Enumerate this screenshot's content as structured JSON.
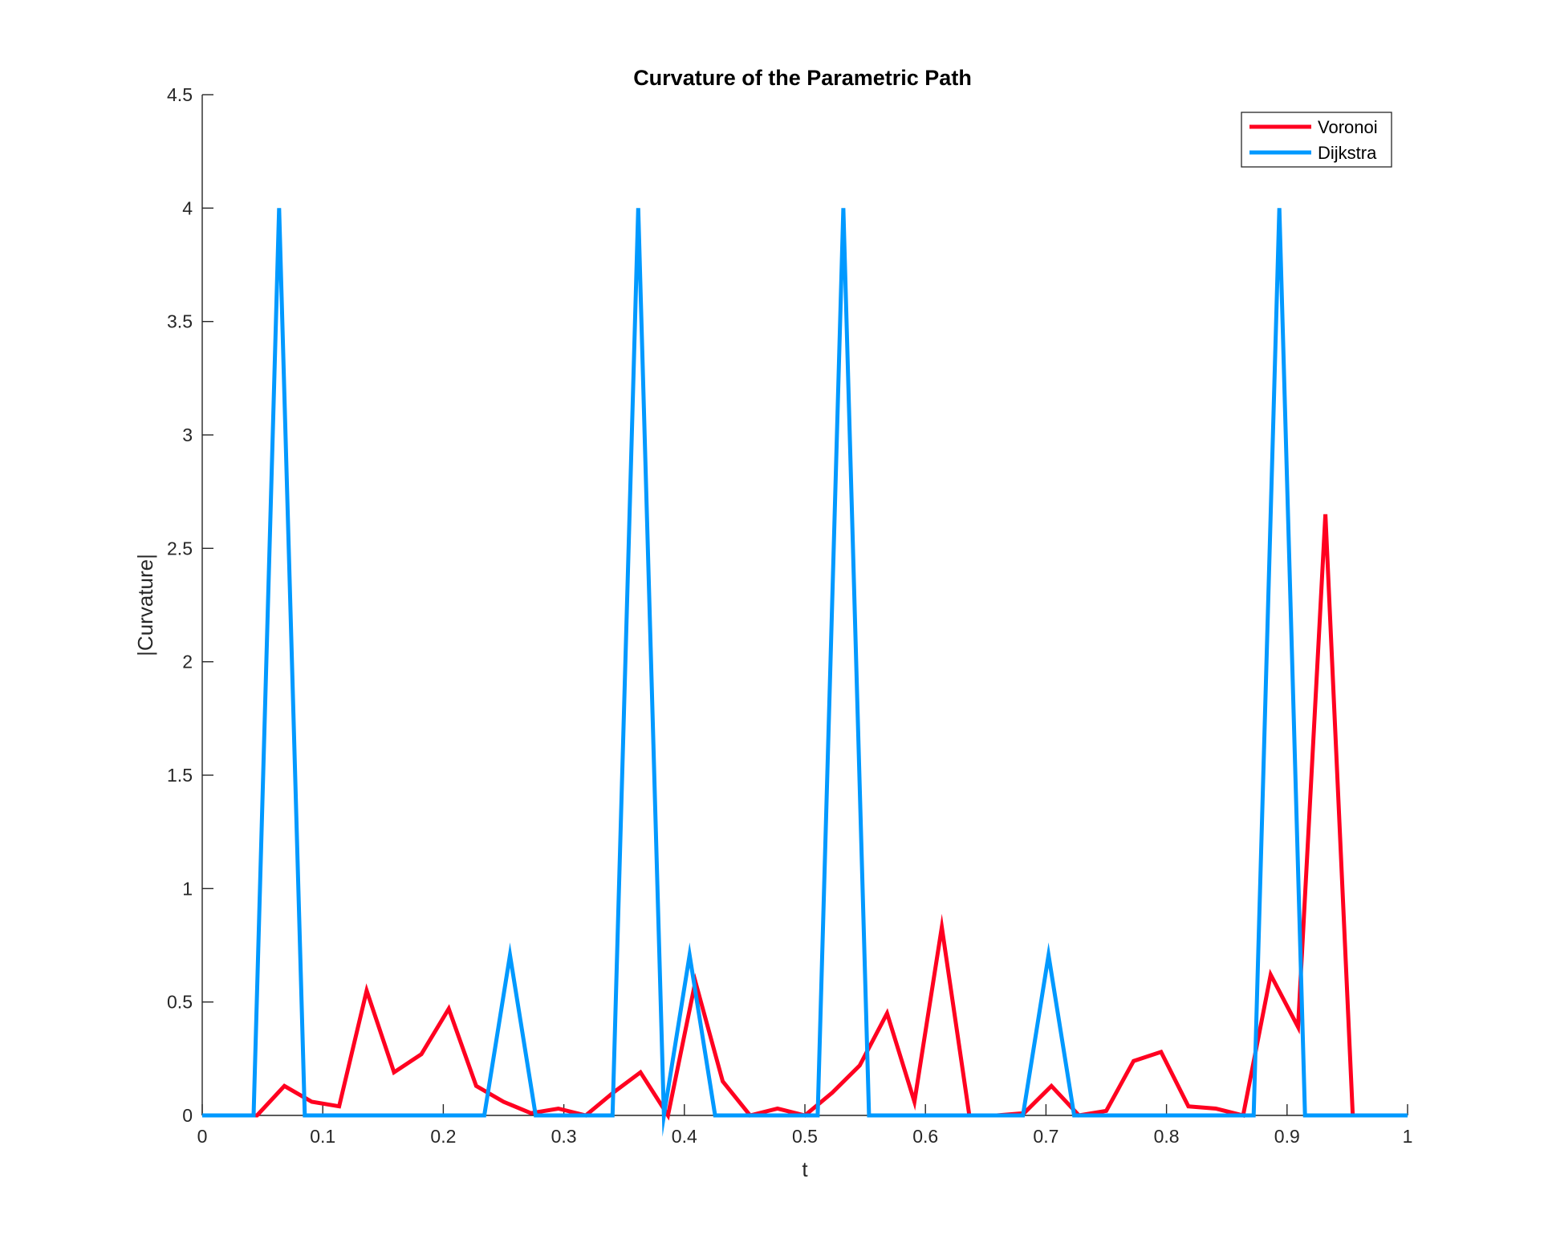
{
  "chart_data": {
    "type": "line",
    "title": "Curvature of the Parametric Path",
    "xlabel": "t",
    "ylabel": "|Curvature|",
    "xlim": [
      0,
      1
    ],
    "ylim": [
      0,
      4.5
    ],
    "xticks": [
      0,
      0.1,
      0.2,
      0.3,
      0.4,
      0.5,
      0.6,
      0.7,
      0.8,
      0.9,
      1
    ],
    "xtick_labels": [
      "0",
      "0.1",
      "0.2",
      "0.3",
      "0.4",
      "0.5",
      "0.6",
      "0.7",
      "0.8",
      "0.9",
      "1"
    ],
    "yticks": [
      0,
      0.5,
      1,
      1.5,
      2,
      2.5,
      3,
      3.5,
      4,
      4.5
    ],
    "ytick_labels": [
      "0",
      "0.5",
      "1",
      "1.5",
      "2",
      "2.5",
      "3",
      "3.5",
      "4",
      "4.5"
    ],
    "grid": false,
    "legend_position": "top-right",
    "series": [
      {
        "name": "Voronoi",
        "color": "#FF0020",
        "x": [
          0,
          0.0227,
          0.0455,
          0.0682,
          0.0909,
          0.1136,
          0.1364,
          0.1591,
          0.1818,
          0.2045,
          0.2273,
          0.25,
          0.2727,
          0.2955,
          0.3182,
          0.3409,
          0.3636,
          0.3864,
          0.4091,
          0.4318,
          0.4545,
          0.4773,
          0.5,
          0.5227,
          0.5455,
          0.5682,
          0.5909,
          0.6136,
          0.6364,
          0.6591,
          0.6818,
          0.7045,
          0.7273,
          0.75,
          0.7727,
          0.7955,
          0.8182,
          0.8409,
          0.8636,
          0.8864,
          0.9091,
          0.9318,
          0.9545,
          0.9773,
          1
        ],
        "y": [
          0,
          0,
          0,
          0.13,
          0.06,
          0.04,
          0.55,
          0.19,
          0.27,
          0.47,
          0.13,
          0.06,
          0.01,
          0.03,
          0,
          0.1,
          0.19,
          0,
          0.59,
          0.15,
          0,
          0.03,
          0,
          0.1,
          0.22,
          0.45,
          0.06,
          0.83,
          0,
          0,
          0.01,
          0.13,
          0,
          0.02,
          0.24,
          0.28,
          0.04,
          0.03,
          0,
          0.62,
          0.39,
          2.65,
          0,
          0,
          0
        ]
      },
      {
        "name": "Dijkstra",
        "color": "#0099FF",
        "x": [
          0,
          0.0213,
          0.0426,
          0.0638,
          0.0851,
          0.1064,
          0.1277,
          0.1489,
          0.1702,
          0.1915,
          0.2128,
          0.234,
          0.2553,
          0.2766,
          0.2979,
          0.3191,
          0.3404,
          0.3617,
          0.383,
          0.4043,
          0.4255,
          0.4468,
          0.4681,
          0.4894,
          0.5106,
          0.5319,
          0.5532,
          0.5745,
          0.5957,
          0.617,
          0.6383,
          0.6596,
          0.6809,
          0.7021,
          0.7234,
          0.7447,
          0.766,
          0.7872,
          0.8085,
          0.8298,
          0.8511,
          0.8723,
          0.8936,
          0.9149,
          0.9362,
          0.9574,
          0.9787,
          1
        ],
        "y": [
          0,
          0,
          0,
          4,
          0,
          0,
          0,
          0,
          0,
          0,
          0,
          0,
          0.707,
          0,
          0,
          0,
          0,
          4,
          0,
          0.707,
          0,
          0,
          0,
          0,
          0,
          4,
          0,
          0,
          0,
          0,
          0,
          0,
          0,
          0.707,
          0,
          0,
          0,
          0,
          0,
          0,
          0,
          0,
          4,
          0,
          0,
          0,
          0,
          0
        ]
      }
    ]
  }
}
